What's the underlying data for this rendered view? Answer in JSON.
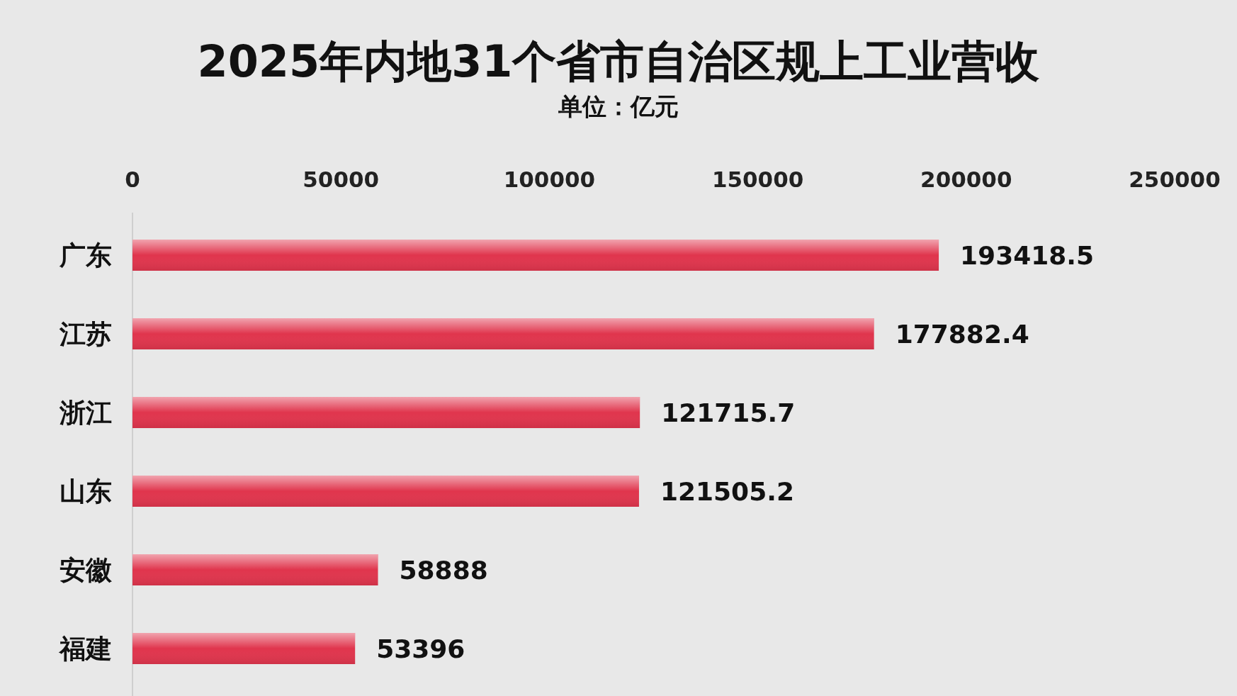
{
  "chart_data": {
    "type": "bar",
    "orientation": "horizontal",
    "title": "2025年内地31个省市自治区规上工业营收",
    "subtitle": "单位：亿元",
    "categories": [
      "广东",
      "江苏",
      "浙江",
      "山东",
      "安徽",
      "福建"
    ],
    "values": [
      193418.5,
      177882.4,
      121715.7,
      121505.2,
      58888,
      53396
    ],
    "color": "#e0354d",
    "xlim": [
      0,
      250000
    ],
    "xticks": [
      0,
      50000,
      100000,
      150000,
      200000,
      250000
    ],
    "data_labels": true
  }
}
